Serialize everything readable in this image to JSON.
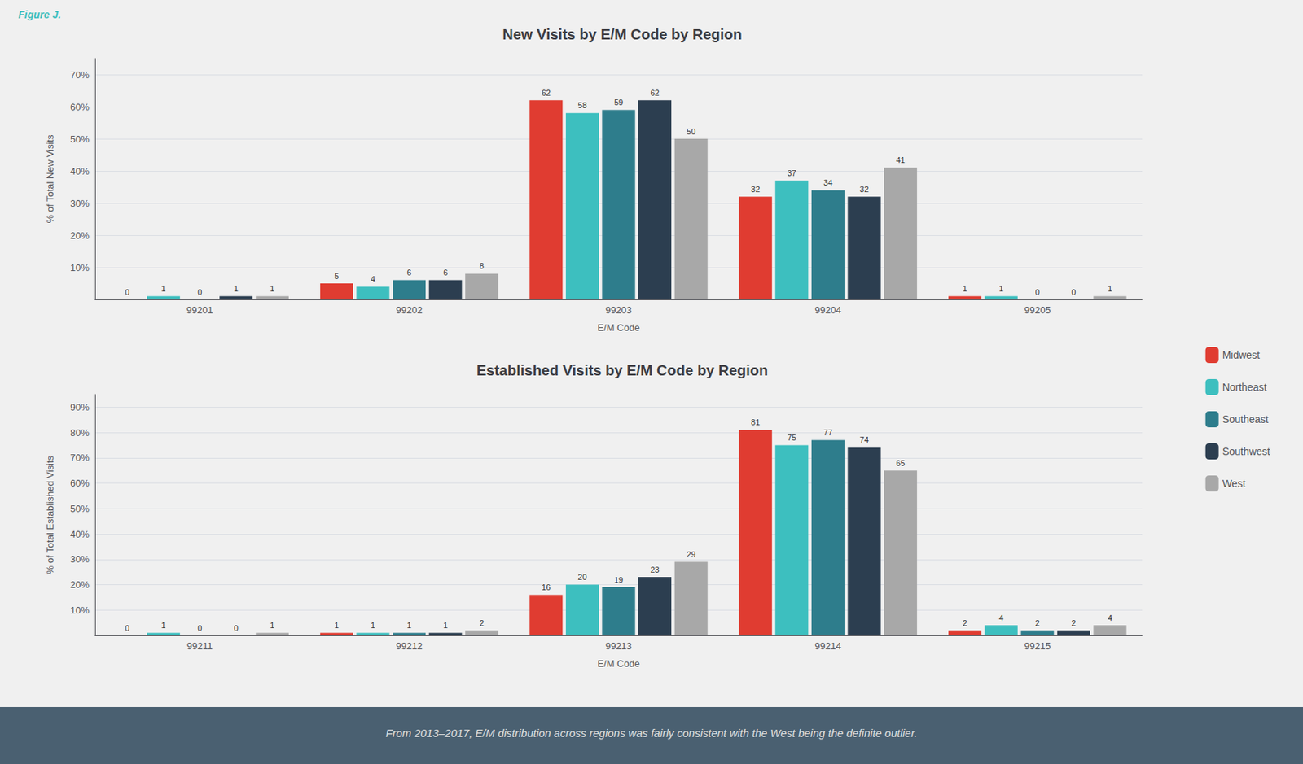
{
  "chart_data": [
    {
      "type": "bar",
      "title": "New Visits by E/M Code by Region",
      "annotations": [
        "Figure J."
      ],
      "x_label": "E/M Code",
      "y_label": "% of Total New Visits",
      "categories": [
        "99201",
        "99202",
        "99203",
        "99204",
        "99205"
      ],
      "series": [
        {
          "name": "Midwest",
          "color": "#e03c31",
          "values": [
            0,
            5,
            62,
            32,
            1
          ]
        },
        {
          "name": "Northeast",
          "color": "#3dbfbf",
          "values": [
            1,
            4,
            58,
            37,
            1
          ]
        },
        {
          "name": "Southeast",
          "color": "#2e7d8c",
          "values": [
            0,
            6,
            59,
            34,
            0
          ]
        },
        {
          "name": "Southwest",
          "color": "#2c3e50",
          "values": [
            1,
            6,
            62,
            32,
            0
          ]
        },
        {
          "name": "West",
          "color": "#a8a8a8",
          "values": [
            1,
            8,
            50,
            41,
            1
          ]
        }
      ],
      "ylim": [
        0,
        75
      ],
      "yticks": [
        {
          "value": 0,
          "label": null
        },
        {
          "value": 10,
          "label": "10%"
        },
        {
          "value": 20,
          "label": "20%"
        },
        {
          "value": 30,
          "label": "30%"
        },
        {
          "value": 40,
          "label": "40%"
        },
        {
          "value": 50,
          "label": "50%"
        },
        {
          "value": 60,
          "label": "60%"
        },
        {
          "value": 70,
          "label": "70%"
        }
      ],
      "grid": true,
      "data_labels": true
    },
    {
      "type": "bar",
      "title": "Established Visits by E/M Code by Region",
      "annotations": [
        "From 2013–2017, E/M distribution across regions was fairly consistent with the West being the definite outlier."
      ],
      "x_label": "E/M Code",
      "y_label": "% of Total Established Visits",
      "categories": [
        "99211",
        "99212",
        "99213",
        "99214",
        "99215"
      ],
      "series": [
        {
          "name": "Midwest",
          "color": "#e03c31",
          "values": [
            0,
            1,
            16,
            81,
            2
          ]
        },
        {
          "name": "Northeast",
          "color": "#3dbfbf",
          "values": [
            1,
            1,
            20,
            75,
            4
          ]
        },
        {
          "name": "Southeast",
          "color": "#2e7d8c",
          "values": [
            0,
            1,
            19,
            77,
            2
          ]
        },
        {
          "name": "Southwest",
          "color": "#2c3e50",
          "values": [
            0,
            1,
            23,
            74,
            2
          ]
        },
        {
          "name": "West",
          "color": "#a8a8a8",
          "values": [
            1,
            2,
            29,
            65,
            4
          ]
        }
      ],
      "ylim": [
        0,
        95
      ],
      "yticks": [
        {
          "value": 0,
          "label": null
        },
        {
          "value": 10,
          "label": "10%"
        },
        {
          "value": 20,
          "label": "20%"
        },
        {
          "value": 30,
          "label": "30%"
        },
        {
          "value": 40,
          "label": "40%"
        },
        {
          "value": 50,
          "label": "50%"
        },
        {
          "value": 60,
          "label": "60%"
        },
        {
          "value": 70,
          "label": "70%"
        },
        {
          "value": 80,
          "label": "80%"
        },
        {
          "value": 90,
          "label": "90%"
        }
      ],
      "grid": true,
      "data_labels": true,
      "legend": "right"
    }
  ]
}
